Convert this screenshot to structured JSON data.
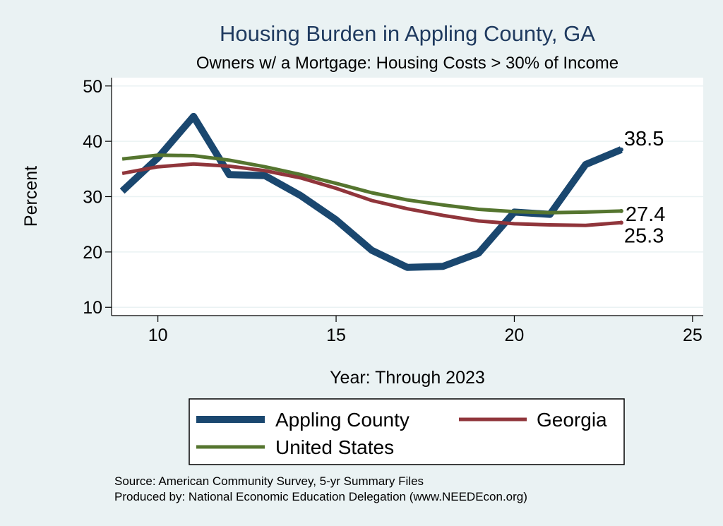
{
  "chart_data": {
    "type": "line",
    "title": "Housing Burden in Appling County, GA",
    "subtitle": "Owners w/ a Mortgage: Housing Costs > 30% of Income",
    "xlabel": "Year: Through 2023",
    "ylabel": "Percent",
    "xlim": [
      8.7,
      25.3
    ],
    "ylim": [
      8.5,
      51.5
    ],
    "xticks": [
      10,
      15,
      20,
      25
    ],
    "yticks": [
      10,
      20,
      30,
      40,
      50
    ],
    "grid": true,
    "legend_position": "bottom",
    "x": [
      9,
      10,
      11,
      12,
      13,
      14,
      15,
      16,
      17,
      18,
      19,
      20,
      21,
      22,
      23
    ],
    "series": [
      {
        "name": "Appling County",
        "color": "#1a476f",
        "width": 10,
        "values": [
          31.0,
          37.0,
          44.5,
          34.0,
          33.8,
          30.2,
          25.8,
          20.3,
          17.2,
          17.4,
          19.8,
          27.2,
          26.8,
          35.8,
          38.5
        ],
        "end_label": "38.5"
      },
      {
        "name": "Georgia",
        "color": "#90353b",
        "width": 5,
        "values": [
          34.2,
          35.4,
          35.9,
          35.5,
          34.7,
          33.4,
          31.5,
          29.3,
          27.8,
          26.6,
          25.6,
          25.1,
          24.9,
          24.8,
          25.3
        ],
        "end_label": "25.3"
      },
      {
        "name": "United States",
        "color": "#55752f",
        "width": 5,
        "values": [
          36.8,
          37.5,
          37.4,
          36.6,
          35.4,
          34.0,
          32.4,
          30.7,
          29.4,
          28.5,
          27.7,
          27.3,
          27.1,
          27.2,
          27.4
        ],
        "end_label": "27.4"
      }
    ],
    "source_note": "Source: American Community Survey, 5-yr Summary Files",
    "produced_note": "Produced by: National Economic Education Delegation (www.NEEDEcon.org)"
  }
}
